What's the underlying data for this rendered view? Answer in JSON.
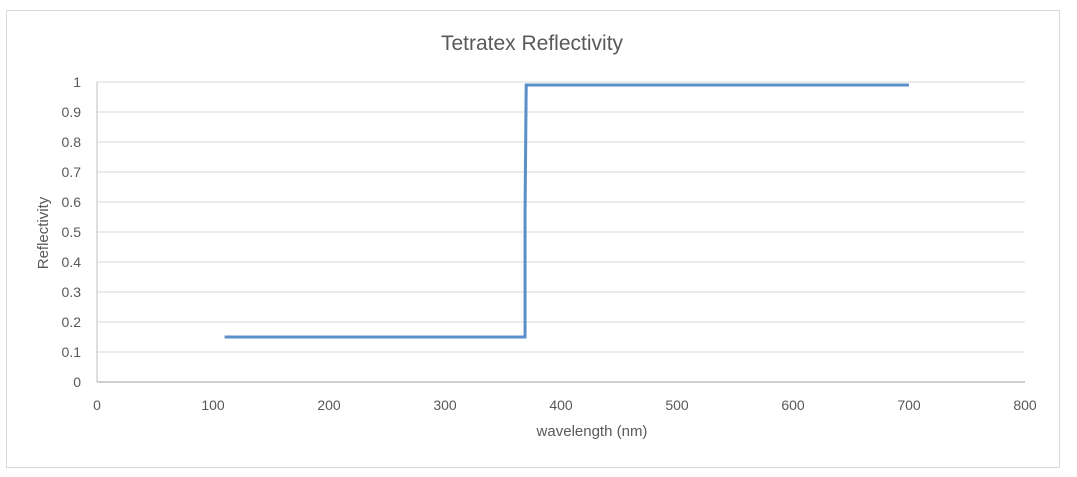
{
  "chart_data": {
    "type": "line",
    "title": "Tetratex Reflectivity",
    "xlabel": "wavelength (nm)",
    "ylabel": "Reflectivity",
    "xlim": [
      0,
      800
    ],
    "ylim": [
      0,
      1
    ],
    "x_ticks": [
      "0",
      "100",
      "200",
      "300",
      "400",
      "500",
      "600",
      "700",
      "800"
    ],
    "y_ticks": [
      "0",
      "0.1",
      "0.2",
      "0.3",
      "0.4",
      "0.5",
      "0.6",
      "0.7",
      "0.8",
      "0.9",
      "1"
    ],
    "grid": true,
    "legend": "none",
    "series": [
      {
        "color": "#5b8fc9",
        "x": [
          110,
          369,
          369,
          370,
          700
        ],
        "y": [
          0.15,
          0.15,
          0.56,
          0.99,
          0.99
        ]
      }
    ]
  }
}
